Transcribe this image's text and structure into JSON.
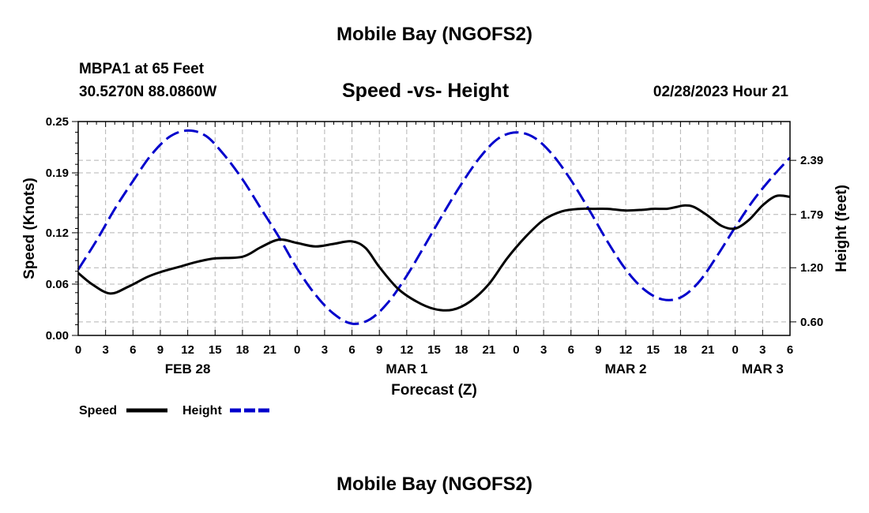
{
  "page": {
    "title": "Mobile Bay (NGOFS2)",
    "bottom_title": "Mobile Bay (NGOFS2)",
    "station": "MBPA1 at 65 Feet",
    "coordinates": "30.5270N  88.0860W",
    "forecast_time": "02/28/2023 Hour 21"
  },
  "chart_data": {
    "type": "line",
    "title": "Speed -vs- Height",
    "xlabel": "Forecast (Z)",
    "ylabel": "Speed (Knots)",
    "y2label": "Height (feet)",
    "x_unit": "hours from 2023-02-28 00Z",
    "xlim": [
      0,
      78
    ],
    "ylim": [
      0,
      0.25
    ],
    "y2lim": [
      0.45,
      2.82
    ],
    "x_tick_values": [
      0,
      3,
      6,
      9,
      12,
      15,
      18,
      21,
      24,
      27,
      30,
      33,
      36,
      39,
      42,
      45,
      48,
      51,
      54,
      57,
      60,
      63,
      66,
      69,
      72,
      75,
      78
    ],
    "x_tick_labels": [
      "0",
      "3",
      "6",
      "9",
      "12",
      "15",
      "18",
      "21",
      "0",
      "3",
      "6",
      "9",
      "12",
      "15",
      "18",
      "21",
      "0",
      "3",
      "6",
      "9",
      "12",
      "15",
      "18",
      "21",
      "0",
      "3",
      "6"
    ],
    "date_labels": [
      {
        "label": "FEB 28",
        "x": 12
      },
      {
        "label": "MAR 1",
        "x": 36
      },
      {
        "label": "MAR 2",
        "x": 60
      },
      {
        "label": "MAR 3",
        "x": 75
      }
    ],
    "y_ticks": [
      0.0,
      0.06,
      0.12,
      0.19,
      0.25
    ],
    "y_tick_labels": [
      "0.00",
      "0.06",
      "0.12",
      "0.19",
      "0.25"
    ],
    "y2_ticks": [
      0.6,
      1.2,
      1.79,
      2.39
    ],
    "y2_tick_labels": [
      "0.60",
      "1.20",
      "1.79",
      "2.39"
    ],
    "grid": true,
    "legend_position": "bottom-left",
    "series": [
      {
        "name": "Speed",
        "axis": "left",
        "color": "#000000",
        "style": "solid",
        "x": [
          0,
          1.5,
          3.5,
          5.5,
          7.5,
          9,
          11,
          13,
          15,
          18,
          20,
          22,
          24,
          26,
          28,
          30,
          31.5,
          33,
          35,
          37,
          39,
          41,
          43,
          45,
          47,
          49,
          51,
          53,
          55,
          56.5,
          58,
          60,
          62,
          63,
          64.5,
          65.5,
          66.5,
          67.5,
          69,
          70.5,
          72,
          73.5,
          75,
          76.5,
          78
        ],
        "values": [
          0.073,
          0.06,
          0.049,
          0.057,
          0.068,
          0.074,
          0.08,
          0.086,
          0.09,
          0.092,
          0.103,
          0.112,
          0.108,
          0.104,
          0.107,
          0.11,
          0.102,
          0.08,
          0.055,
          0.04,
          0.031,
          0.03,
          0.04,
          0.06,
          0.09,
          0.115,
          0.135,
          0.145,
          0.148,
          0.148,
          0.148,
          0.146,
          0.147,
          0.148,
          0.148,
          0.15,
          0.152,
          0.15,
          0.14,
          0.128,
          0.125,
          0.135,
          0.152,
          0.163,
          0.162
        ]
      },
      {
        "name": "Height",
        "axis": "right",
        "color": "#0000cc",
        "style": "dashed",
        "x": [
          0,
          2,
          4,
          6,
          8,
          10,
          12,
          14,
          16,
          18,
          20,
          22,
          24,
          26,
          28,
          30,
          32,
          34,
          36,
          38,
          40,
          42,
          44,
          46,
          48,
          50,
          52,
          54,
          56,
          58,
          60,
          62,
          64,
          66,
          68,
          70,
          72,
          74,
          76,
          78
        ],
        "values": [
          1.18,
          1.5,
          1.85,
          2.16,
          2.45,
          2.65,
          2.72,
          2.66,
          2.45,
          2.18,
          1.86,
          1.54,
          1.19,
          0.9,
          0.69,
          0.58,
          0.63,
          0.82,
          1.11,
          1.45,
          1.8,
          2.13,
          2.42,
          2.63,
          2.7,
          2.64,
          2.45,
          2.17,
          1.84,
          1.49,
          1.18,
          0.96,
          0.85,
          0.87,
          1.04,
          1.33,
          1.65,
          1.95,
          2.2,
          2.42
        ]
      }
    ]
  }
}
